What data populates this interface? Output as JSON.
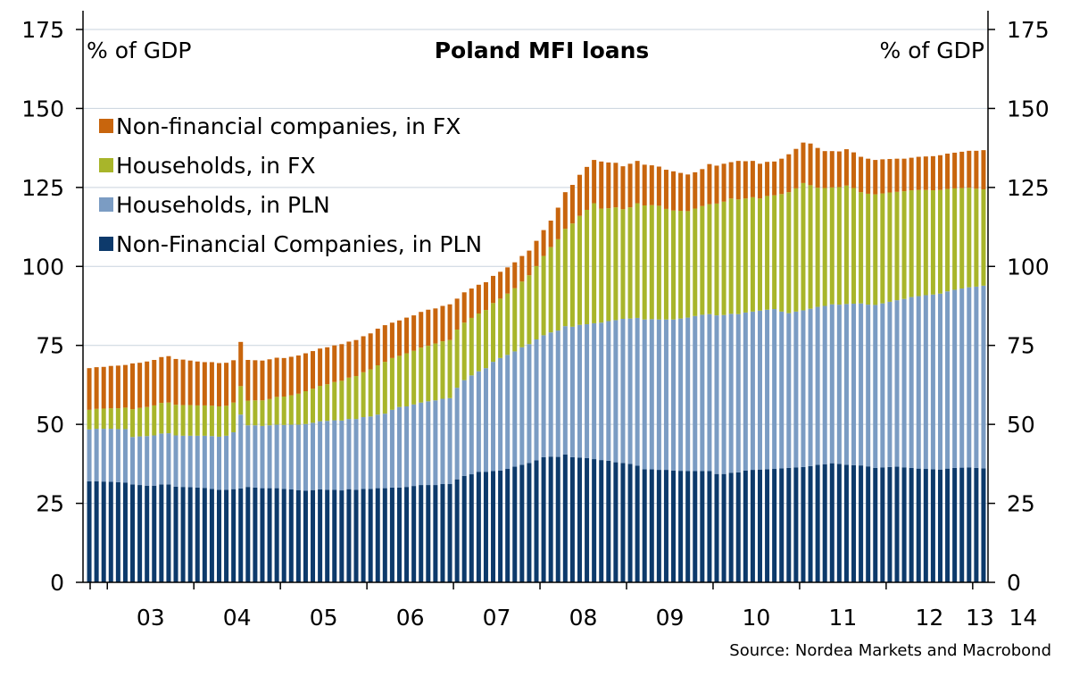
{
  "chart_data": {
    "type": "bar",
    "stacked": true,
    "title": "Poland MFI loans",
    "ylabel_left": "% of GDP",
    "ylabel_right": "% of GDP",
    "ylim": [
      0,
      175
    ],
    "yticks": [
      0,
      25,
      50,
      75,
      100,
      125,
      150,
      175
    ],
    "grid": true,
    "legend_position": "top-left",
    "source": "Source: Nordea Markets and Macrobond",
    "x_start": "2002-10",
    "x_labels": [
      "03",
      "04",
      "05",
      "06",
      "07",
      "08",
      "09",
      "10",
      "11",
      "12",
      "13",
      "14"
    ],
    "series": [
      {
        "name": "Non-Financial Companies, in PLN",
        "color": "#0d3a6b",
        "values": [
          32.0,
          32.0,
          31.9,
          31.8,
          31.7,
          31.6,
          31.0,
          30.8,
          30.6,
          30.6,
          31.0,
          31.0,
          30.3,
          30.2,
          30.1,
          30.0,
          29.9,
          29.6,
          29.3,
          29.3,
          29.5,
          29.7,
          30.2,
          30.0,
          29.8,
          29.8,
          29.8,
          29.6,
          29.4,
          29.2,
          29.0,
          29.2,
          29.4,
          29.3,
          29.3,
          29.1,
          29.5,
          29.3,
          29.6,
          29.6,
          29.8,
          29.8,
          30.0,
          30.0,
          30.2,
          30.5,
          30.8,
          30.8,
          30.8,
          31.1,
          31.1,
          32.6,
          33.7,
          34.2,
          35.0,
          35.0,
          35.2,
          35.4,
          35.9,
          36.6,
          37.2,
          37.8,
          38.6,
          39.6,
          39.8,
          39.7,
          40.5,
          39.6,
          39.5,
          39.3,
          39.0,
          38.7,
          38.5,
          38.0,
          37.8,
          37.5,
          36.9,
          35.8,
          35.8,
          35.6,
          35.6,
          35.4,
          35.3,
          35.2,
          35.2,
          35.2,
          35.2,
          34.3,
          34.3,
          34.7,
          34.8,
          35.4,
          35.6,
          35.7,
          35.8,
          35.9,
          36.1,
          36.2,
          36.4,
          36.5,
          36.8,
          37.2,
          37.4,
          37.7,
          37.5,
          37.2,
          37.1,
          37.0,
          36.7,
          36.2,
          36.4,
          36.5,
          36.6,
          36.4,
          36.2,
          36.0,
          35.9,
          35.8,
          35.7,
          36.0,
          36.2,
          36.3,
          36.4,
          36.2,
          36.1
        ]
      },
      {
        "name": "Households, in PLN",
        "color": "#7b9cc3",
        "values": [
          16.4,
          16.6,
          16.7,
          16.8,
          16.8,
          16.9,
          15.0,
          15.4,
          15.7,
          15.9,
          16.1,
          16.2,
          16.2,
          16.2,
          16.3,
          16.4,
          16.5,
          16.7,
          16.8,
          17.1,
          18.0,
          23.4,
          19.5,
          19.7,
          19.7,
          19.9,
          20.1,
          20.2,
          20.5,
          20.7,
          21.1,
          21.3,
          21.6,
          21.8,
          22.0,
          22.1,
          22.2,
          22.4,
          22.7,
          22.9,
          23.3,
          23.6,
          24.6,
          25.5,
          25.5,
          25.8,
          26.1,
          26.5,
          26.8,
          27.0,
          27.2,
          29.0,
          30.3,
          31.3,
          31.8,
          32.8,
          34.6,
          35.6,
          36.1,
          36.5,
          37.2,
          37.6,
          38.3,
          38.6,
          39.3,
          40.0,
          40.6,
          41.3,
          42.0,
          42.4,
          43.0,
          43.5,
          44.2,
          45.0,
          45.6,
          46.0,
          46.8,
          47.4,
          47.5,
          47.6,
          47.6,
          47.8,
          48.2,
          48.6,
          49.1,
          49.5,
          49.7,
          50.2,
          50.3,
          50.3,
          50.1,
          50.0,
          50.1,
          50.3,
          50.5,
          50.6,
          49.6,
          49.0,
          49.3,
          49.6,
          49.8,
          50.0,
          50.1,
          50.3,
          50.4,
          50.9,
          51.1,
          51.3,
          51.2,
          51.6,
          51.9,
          52.3,
          52.7,
          53.3,
          54.1,
          54.6,
          55.0,
          55.3,
          55.7,
          56.1,
          56.4,
          56.7,
          57.0,
          57.4,
          57.8
        ]
      },
      {
        "name": "Households, in FX",
        "color": "#a8b52a",
        "values": [
          6.2,
          6.3,
          6.4,
          6.5,
          6.6,
          6.8,
          8.8,
          9.0,
          9.2,
          9.5,
          9.7,
          9.7,
          9.7,
          9.7,
          9.7,
          9.6,
          9.6,
          9.6,
          9.6,
          9.5,
          9.4,
          9.0,
          7.8,
          7.9,
          8.1,
          8.3,
          8.8,
          9.0,
          9.3,
          9.8,
          10.4,
          10.8,
          11.2,
          11.6,
          12.1,
          12.6,
          13.1,
          13.6,
          14.2,
          14.9,
          15.6,
          16.4,
          16.4,
          16.2,
          16.8,
          17.0,
          17.4,
          17.6,
          18.0,
          18.2,
          18.4,
          18.4,
          18.2,
          18.2,
          18.3,
          18.4,
          18.6,
          18.8,
          19.4,
          20.0,
          20.8,
          21.8,
          23.2,
          25.1,
          27.0,
          28.9,
          30.8,
          32.7,
          34.5,
          36.2,
          38.0,
          36.1,
          35.7,
          35.7,
          34.7,
          35.2,
          36.3,
          36.1,
          36.1,
          36.0,
          35.0,
          34.5,
          34.1,
          33.7,
          34.0,
          34.4,
          34.8,
          35.4,
          35.9,
          36.5,
          36.3,
          36.1,
          36.2,
          35.5,
          36.0,
          36.0,
          37.2,
          38.3,
          39.0,
          40.3,
          39.1,
          37.7,
          37.3,
          37.0,
          37.2,
          37.5,
          36.6,
          35.2,
          35.1,
          35.0,
          34.8,
          34.6,
          34.3,
          34.1,
          33.8,
          33.6,
          33.3,
          33.0,
          32.8,
          32.4,
          32.1,
          31.8,
          31.5,
          31.0,
          30.5
        ]
      },
      {
        "name": "Non-financial companies, in FX",
        "color": "#c8650d",
        "values": [
          13.2,
          13.2,
          13.2,
          13.4,
          13.5,
          13.5,
          14.5,
          14.3,
          14.4,
          14.4,
          14.5,
          14.7,
          14.5,
          14.4,
          14.1,
          13.9,
          13.7,
          13.8,
          13.7,
          13.6,
          13.4,
          14.0,
          12.9,
          12.7,
          12.6,
          12.6,
          12.4,
          12.2,
          12.2,
          12.1,
          12.0,
          11.9,
          11.8,
          11.7,
          11.6,
          11.6,
          11.4,
          11.4,
          11.4,
          11.4,
          11.6,
          11.6,
          11.2,
          11.2,
          11.3,
          11.2,
          11.3,
          11.4,
          11.1,
          11.2,
          11.3,
          9.8,
          9.6,
          9.3,
          9.1,
          8.8,
          8.6,
          8.5,
          8.3,
          8.2,
          8.1,
          7.8,
          8.0,
          8.2,
          8.4,
          10.0,
          11.6,
          12.2,
          13.0,
          13.6,
          13.7,
          14.9,
          14.5,
          14.1,
          13.6,
          13.8,
          13.4,
          12.9,
          12.6,
          12.4,
          12.4,
          12.4,
          12.0,
          11.6,
          11.5,
          11.7,
          12.7,
          12.0,
          12.0,
          11.5,
          12.2,
          11.8,
          11.5,
          11.0,
          10.8,
          10.7,
          11.2,
          12.0,
          12.5,
          12.8,
          13.2,
          12.6,
          11.7,
          11.5,
          11.3,
          11.5,
          11.3,
          11.2,
          11.1,
          10.9,
          10.8,
          10.6,
          10.5,
          10.3,
          10.3,
          10.5,
          10.6,
          10.8,
          11.0,
          11.2,
          11.3,
          11.5,
          11.7,
          12.0,
          12.4
        ]
      }
    ],
    "legend_order": [
      "Non-financial companies, in FX",
      "Households, in FX",
      "Households, in PLN",
      "Non-Financial Companies, in PLN"
    ]
  }
}
